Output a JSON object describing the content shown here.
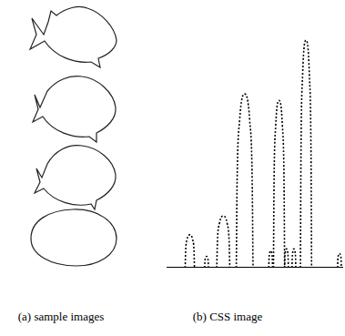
{
  "figure": {
    "captions": [
      "(a) sample images",
      "(b) CSS image"
    ]
  },
  "chart_data": {
    "type": "line",
    "xlim": [
      0,
      190
    ],
    "ylim": [
      0,
      250
    ],
    "tick_labels": false,
    "grid": false,
    "line_style": "dotted",
    "color": "#000000",
    "series": [
      {
        "x": [
          20,
          20.5,
          22,
          25,
          28,
          29.5,
          30
        ],
        "values": [
          0,
          18,
          30,
          35,
          30,
          18,
          0
        ]
      },
      {
        "x": [
          41,
          41.2,
          41.8,
          43,
          44.2,
          44.8,
          45
        ],
        "values": [
          0,
          6,
          10,
          12,
          10,
          6,
          0
        ]
      },
      {
        "x": [
          54,
          54.7,
          56.8,
          61,
          65.2,
          67.3,
          68
        ],
        "values": [
          0,
          28,
          47,
          55,
          47,
          28,
          0
        ]
      },
      {
        "x": [
          75,
          75.9,
          78.6,
          84,
          89.4,
          92.1,
          93
        ],
        "values": [
          0,
          93,
          157,
          185,
          157,
          93,
          0
        ]
      },
      {
        "x": [
          110,
          110.2,
          110.8,
          112,
          113.2,
          113.8,
          114
        ],
        "values": [
          0,
          9,
          15,
          18,
          15,
          9,
          0
        ]
      },
      {
        "x": [
          115,
          115.6,
          117.4,
          121,
          124.6,
          126.4,
          127
        ],
        "values": [
          0,
          89,
          151,
          178,
          151,
          89,
          0
        ]
      },
      {
        "x": [
          127,
          127.2,
          127.8,
          129,
          130.2,
          130.8,
          131
        ],
        "values": [
          0,
          10,
          17,
          20,
          17,
          10,
          0
        ]
      },
      {
        "x": [
          135,
          135.2,
          135.8,
          137,
          138.2,
          138.8,
          139
        ],
        "values": [
          0,
          10,
          17,
          20,
          17,
          10,
          0
        ]
      },
      {
        "x": [
          144,
          144.6,
          146.4,
          150,
          153.6,
          155.4,
          156
        ],
        "values": [
          0,
          121,
          206,
          242,
          206,
          121,
          0
        ]
      },
      {
        "x": [
          184,
          184.2,
          184.8,
          186,
          187.2,
          187.8,
          188
        ],
        "values": [
          0,
          8,
          13,
          15,
          13,
          8,
          0
        ]
      }
    ]
  }
}
